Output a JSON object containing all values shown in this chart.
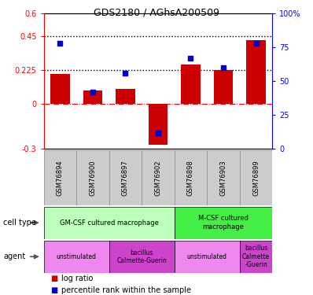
{
  "title": "GDS2180 / AGhsA200509",
  "samples": [
    "GSM76894",
    "GSM76900",
    "GSM76897",
    "GSM76902",
    "GSM76898",
    "GSM76903",
    "GSM76899"
  ],
  "log_ratio": [
    0.2,
    0.09,
    0.1,
    -0.27,
    0.26,
    0.225,
    0.42
  ],
  "percentile": [
    78,
    42,
    56,
    12,
    67,
    60,
    78
  ],
  "ylim_left": [
    -0.3,
    0.6
  ],
  "ylim_right": [
    0,
    100
  ],
  "left_ticks": [
    -0.3,
    0,
    0.225,
    0.45,
    0.6
  ],
  "right_ticks": [
    0,
    25,
    50,
    75,
    100
  ],
  "left_tick_labels": [
    "-0.3",
    "0",
    "0.225",
    "0.45",
    "0.6"
  ],
  "right_tick_labels": [
    "0",
    "25",
    "50",
    "75",
    "100%"
  ],
  "hlines": [
    0.225,
    0.45
  ],
  "bar_color": "#cc0000",
  "dot_color": "#0000cc",
  "cell_types": [
    {
      "label": "GM-CSF cultured macrophage",
      "start": 0,
      "end": 4,
      "color": "#bbffbb"
    },
    {
      "label": "M-CSF cultured\nmacrophage",
      "start": 4,
      "end": 7,
      "color": "#44ee44"
    }
  ],
  "agent_groups": [
    {
      "label": "unstimulated",
      "start": 0,
      "end": 2,
      "color": "#ee88ee"
    },
    {
      "label": "bacillus\nCalmette-Guerin",
      "start": 2,
      "end": 4,
      "color": "#cc44cc"
    },
    {
      "label": "unstimulated",
      "start": 4,
      "end": 6,
      "color": "#ee88ee"
    },
    {
      "label": "bacillus\nCalmette\n-Guerin",
      "start": 6,
      "end": 7,
      "color": "#cc44cc"
    }
  ],
  "legend_items": [
    {
      "label": "log ratio",
      "color": "#cc0000"
    },
    {
      "label": "percentile rank within the sample",
      "color": "#0000cc"
    }
  ],
  "fig_width": 3.98,
  "fig_height": 3.75,
  "dpi": 100
}
